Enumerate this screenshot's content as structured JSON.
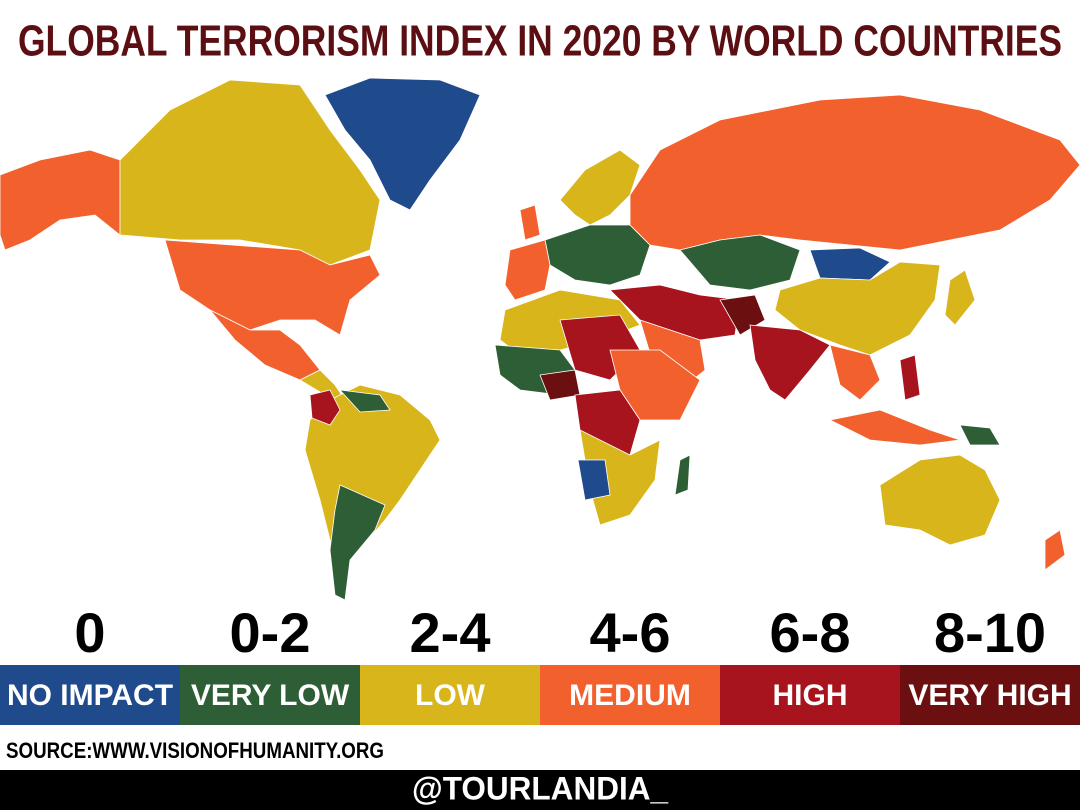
{
  "title": "GLOBAL TERRORISM INDEX IN 2020 BY WORLD COUNTRIES",
  "legend": [
    {
      "range": "0",
      "label": "NO IMPACT",
      "color": "#1f4a8c"
    },
    {
      "range": "0-2",
      "label": "VERY LOW",
      "color": "#2e5e36"
    },
    {
      "range": "2-4",
      "label": "LOW",
      "color": "#d9b51c"
    },
    {
      "range": "4-6",
      "label": "MEDIUM",
      "color": "#f2602e"
    },
    {
      "range": "6-8",
      "label": "HIGH",
      "color": "#a8141e"
    },
    {
      "range": "8-10",
      "label": "VERY HIGH",
      "color": "#6b0f10"
    }
  ],
  "source": "SOURCE:WWW.VISIONOFHUMANITY.ORG",
  "handle": "@TOURLANDIA_"
}
